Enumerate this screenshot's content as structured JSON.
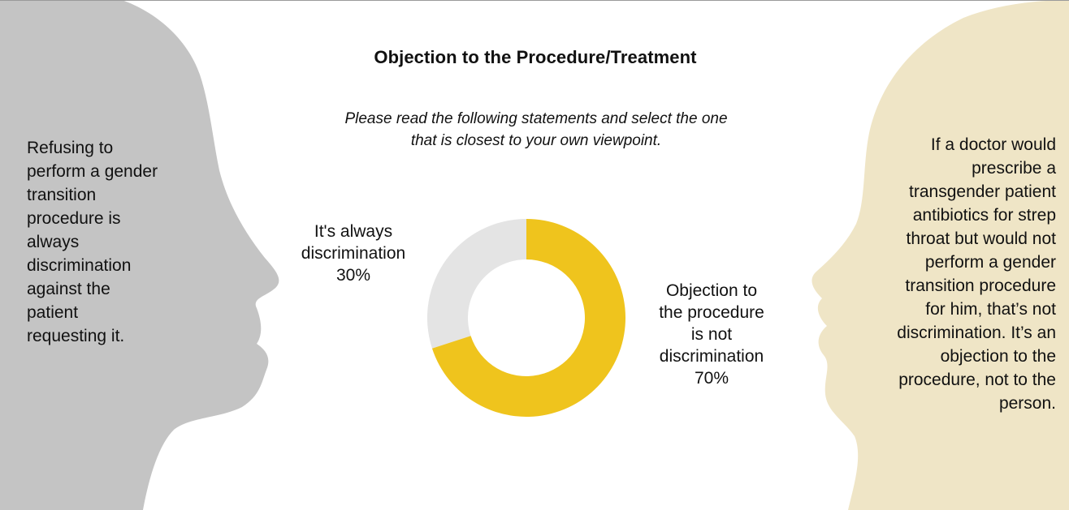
{
  "colors": {
    "left_head": "#c4c4c4",
    "right_head": "#efe5c6",
    "slice_always": "#e4e4e4",
    "slice_objection": "#efc41d",
    "background": "#ffffff"
  },
  "left_statement": [
    "Refusing to",
    "perform a gender",
    "transition",
    "procedure is",
    "always",
    "discrimination",
    "against the",
    "patient",
    "requesting it."
  ],
  "right_statement": [
    "If a doctor would",
    "prescribe a",
    "transgender patient",
    "antibiotics for strep",
    "throat but would not",
    "perform a gender",
    "transition procedure",
    "for him, that’s not",
    "discrimination. It’s an",
    "objection to the",
    "procedure, not to the",
    "person."
  ],
  "chart_data": {
    "type": "pie",
    "style": "donut",
    "title": "Objection to the Procedure/Treatment",
    "subtitle": "Please read the following statements and select the one that is closest to your own viewpoint.",
    "subtitle_lines": [
      "Please read the following statements and select the one",
      "that is closest to your own viewpoint."
    ],
    "slices": [
      {
        "label_lines": [
          "It's always",
          "discrimination"
        ],
        "value": 30,
        "value_label": "30%",
        "color": "#e4e4e4"
      },
      {
        "label_lines": [
          "Objection to",
          "the procedure",
          "is not",
          "discrimination"
        ],
        "value": 70,
        "value_label": "70%",
        "color": "#efc41d"
      }
    ],
    "start_angle_deg": 0,
    "direction": "clockwise",
    "legend": "none"
  }
}
